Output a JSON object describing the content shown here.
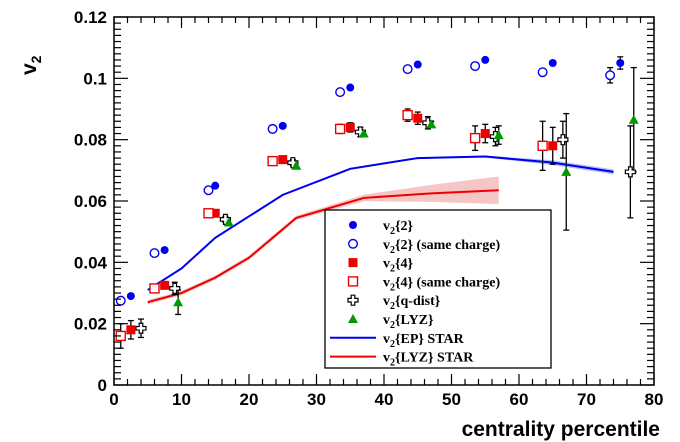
{
  "chart_data": {
    "type": "scatter",
    "xlabel": "centrality percentile",
    "ylabel": "v",
    "ylabel_sub": "2",
    "xlim": [
      0,
      80
    ],
    "ylim": [
      0,
      0.12
    ],
    "x_ticks": [
      "0",
      "10",
      "20",
      "30",
      "40",
      "50",
      "60",
      "70",
      "80"
    ],
    "y_ticks": [
      "0",
      "0.02",
      "0.04",
      "0.06",
      "0.08",
      "0.1",
      "0.12"
    ],
    "grid": false,
    "legend_position": "bottom-right",
    "series": [
      {
        "name": "v2{2}",
        "label": "{2}",
        "marker": "filled-circle",
        "color": "#0000ee",
        "x": [
          2.5,
          7.5,
          15,
          25,
          35,
          45,
          55,
          65,
          75
        ],
        "y": [
          0.029,
          0.044,
          0.065,
          0.0845,
          0.097,
          0.1045,
          0.106,
          0.105,
          0.105
        ],
        "yerr": [
          0,
          0,
          0,
          0,
          0,
          0,
          0,
          0,
          0.002
        ]
      },
      {
        "name": "v2{2} (same charge)",
        "label": "{2} (same charge)",
        "marker": "open-circle",
        "color": "#0000ee",
        "x": [
          1,
          6,
          14,
          23.5,
          33.5,
          43.5,
          53.5,
          63.5,
          73.5
        ],
        "y": [
          0.0275,
          0.043,
          0.0635,
          0.0835,
          0.0955,
          0.103,
          0.104,
          0.102,
          0.101
        ],
        "yerr": [
          0,
          0,
          0,
          0,
          0,
          0,
          0,
          0,
          0.0025
        ]
      },
      {
        "name": "v2{4}",
        "label": "{4}",
        "marker": "filled-square",
        "color": "#ee0000",
        "x": [
          2.5,
          7.5,
          15,
          25,
          35,
          45,
          55,
          65
        ],
        "y": [
          0.018,
          0.0325,
          0.056,
          0.0735,
          0.084,
          0.087,
          0.082,
          0.078
        ],
        "yerr": [
          0.003,
          0.001,
          0.001,
          0.001,
          0.0015,
          0.002,
          0.003,
          0.006
        ]
      },
      {
        "name": "v2{4} (same charge)",
        "label": "{4} (same charge)",
        "marker": "open-square",
        "color": "#ee0000",
        "x": [
          1,
          6,
          14,
          23.5,
          33.5,
          43.5,
          53.5,
          63.5
        ],
        "y": [
          0.016,
          0.0315,
          0.056,
          0.073,
          0.0835,
          0.088,
          0.0805,
          0.078
        ],
        "yerr": [
          0.004,
          0.001,
          0.001,
          0.001,
          0.0015,
          0.002,
          0.004,
          0.008
        ]
      },
      {
        "name": "v2{q-dist}",
        "label": "{q-dist}",
        "marker": "open-cross",
        "color": "#000000",
        "x": [
          4,
          9,
          16.5,
          26.5,
          36.5,
          46.5,
          56.5,
          66.5,
          76.5
        ],
        "y": [
          0.0185,
          0.0315,
          0.054,
          0.0725,
          0.0825,
          0.0855,
          0.081,
          0.08,
          0.0695
        ],
        "yerr": [
          0.003,
          0.002,
          0.001,
          0.001,
          0.0015,
          0.002,
          0.003,
          0.006,
          0.015
        ]
      },
      {
        "name": "v2{LYZ}",
        "label": "{LYZ}",
        "marker": "filled-triangle",
        "color": "#009900",
        "x": [
          9.5,
          17,
          27,
          37,
          47,
          57,
          67,
          77
        ],
        "y": [
          0.027,
          0.053,
          0.0715,
          0.082,
          0.085,
          0.0815,
          0.0695,
          0.0865
        ],
        "yerr": [
          0.004,
          0,
          0,
          0,
          0.001,
          0.003,
          0.019,
          0.017
        ]
      },
      {
        "name": "v2{EP} STAR",
        "label": "{EP} STAR",
        "marker": "line",
        "color": "#0000ee",
        "x": [
          5,
          10,
          15,
          20,
          25,
          35,
          45,
          55,
          65,
          74
        ],
        "y": [
          0.031,
          0.038,
          0.048,
          0.055,
          0.062,
          0.0705,
          0.074,
          0.0745,
          0.0725,
          0.0695
        ]
      },
      {
        "name": "v2{LYZ} STAR",
        "label": "{LYZ} STAR",
        "marker": "line",
        "color": "#ee0000",
        "x": [
          5,
          10,
          15,
          20,
          27,
          37,
          47,
          57
        ],
        "y": [
          0.027,
          0.03,
          0.035,
          0.0415,
          0.0545,
          0.061,
          0.0625,
          0.0635
        ]
      }
    ]
  }
}
